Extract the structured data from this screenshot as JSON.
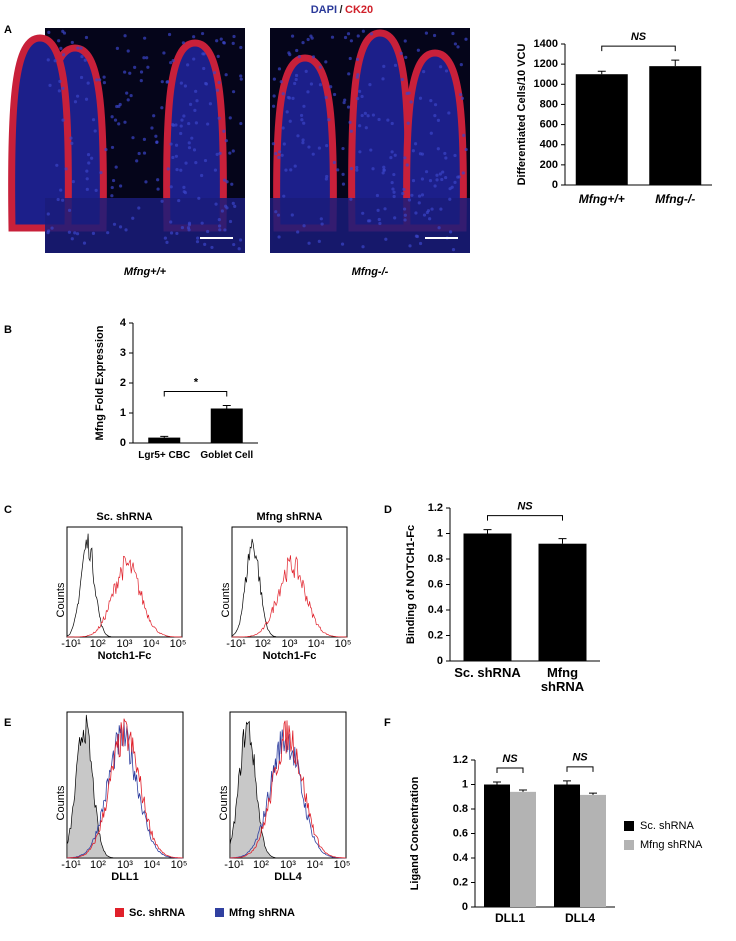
{
  "figure": {
    "header": {
      "stain1": "DAPI",
      "separator": "/",
      "stain2": "CK20"
    },
    "panel_labels": [
      "A",
      "B",
      "C",
      "D",
      "E",
      "F"
    ],
    "micrograph_captions": [
      "Mfng+/+",
      "Mfng-/-"
    ],
    "flow_c": {
      "titles": [
        "Sc. shRNA",
        "Mfng shRNA"
      ],
      "y_label": "Counts",
      "x_label": "Notch1-Fc",
      "x_ticks": [
        "-10¹",
        "10²",
        "10³",
        "10⁴",
        "10⁵"
      ]
    },
    "flow_e": {
      "y_label": "Counts",
      "x_labels": [
        "DLL1",
        "DLL4"
      ],
      "x_ticks": [
        "-10¹",
        "10²",
        "10³",
        "10⁴",
        "10⁵"
      ],
      "legend": [
        {
          "name": "Sc. shRNA",
          "color": "#e0202a"
        },
        {
          "name": "Mfng shRNA",
          "color": "#3040a0"
        }
      ]
    }
  },
  "chart_data": [
    {
      "type": "bar",
      "ylabel": "Differentiated Cells/10 VCU",
      "categories": [
        "Mfng+/+",
        "Mfng-/-"
      ],
      "values": [
        1100,
        1180
      ],
      "errors": [
        30,
        60
      ],
      "color": "#000000",
      "ylim": [
        0,
        1400
      ],
      "yticks": [
        0,
        200,
        400,
        600,
        800,
        1000,
        1200,
        1400
      ],
      "annotation": "NS"
    },
    {
      "type": "bar",
      "ylabel": "Mfng Fold Expression",
      "categories": [
        "Lgr5+ CBC",
        "Goblet Cell"
      ],
      "values": [
        0.18,
        1.15
      ],
      "errors": [
        0.04,
        0.1
      ],
      "color": "#000000",
      "ylim": [
        0,
        4
      ],
      "yticks": [
        0,
        1,
        2,
        3,
        4
      ],
      "annotation": "*"
    },
    {
      "type": "bar",
      "ylabel": "Binding of NOTCH1-Fc",
      "categories": [
        "Sc. shRNA",
        "Mfng shRNA"
      ],
      "values": [
        1.0,
        0.92
      ],
      "errors": [
        0.03,
        0.04
      ],
      "color": "#000000",
      "ylim": [
        0,
        1.2
      ],
      "yticks": [
        0,
        0.2,
        0.4,
        0.6,
        0.8,
        1,
        1.2
      ],
      "annotation": "NS"
    },
    {
      "type": "bar",
      "ylabel": "Ligand Concentration",
      "categories": [
        "DLL1",
        "DLL4"
      ],
      "series": [
        {
          "name": "Sc. shRNA",
          "color": "#000000",
          "values": [
            1.0,
            1.0
          ],
          "errors": [
            0.02,
            0.03
          ]
        },
        {
          "name": "Mfng shRNA",
          "color": "#b3b3b3",
          "values": [
            0.94,
            0.915
          ],
          "errors": [
            0.015,
            0.015
          ]
        }
      ],
      "ylim": [
        0,
        1.2
      ],
      "yticks": [
        0,
        0.2,
        0.4,
        0.6,
        0.8,
        1,
        1.2
      ],
      "annotation": "NS",
      "legend": "right"
    }
  ]
}
